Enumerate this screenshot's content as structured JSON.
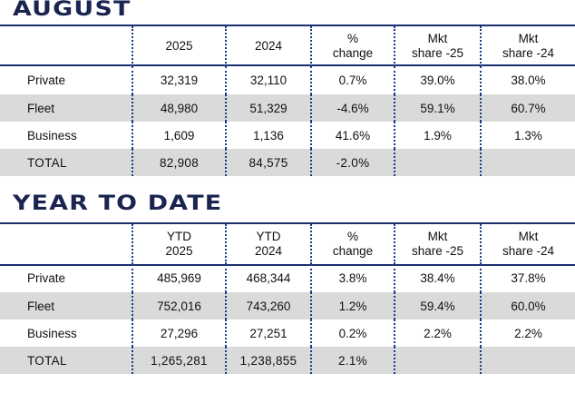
{
  "august": {
    "title": "AUGUST",
    "headers": {
      "col1": "2025",
      "col2": "2024",
      "col3_line1": "%",
      "col3_line2": "change",
      "col4_line1": "Mkt",
      "col4_line2": "share -25",
      "col5_line1": "Mkt",
      "col5_line2": "share -24"
    },
    "rows": [
      {
        "label": "Private",
        "y2025": "32,319",
        "y2024": "32,110",
        "change": "0.7%",
        "share25": "39.0%",
        "share24": "38.0%"
      },
      {
        "label": "Fleet",
        "y2025": "48,980",
        "y2024": "51,329",
        "change": "-4.6%",
        "share25": "59.1%",
        "share24": "60.7%"
      },
      {
        "label": "Business",
        "y2025": "1,609",
        "y2024": "1,136",
        "change": "41.6%",
        "share25": "1.9%",
        "share24": "1.3%"
      },
      {
        "label": "TOTAL",
        "y2025": "82,908",
        "y2024": "84,575",
        "change": "-2.0%",
        "share25": "",
        "share24": ""
      }
    ]
  },
  "ytd": {
    "title": "YEAR TO DATE",
    "headers": {
      "col1_line1": "YTD",
      "col1_line2": "2025",
      "col2_line1": "YTD",
      "col2_line2": "2024",
      "col3_line1": "%",
      "col3_line2": "change",
      "col4_line1": "Mkt",
      "col4_line2": "share -25",
      "col5_line1": "Mkt",
      "col5_line2": "share -24"
    },
    "rows": [
      {
        "label": "Private",
        "y2025": "485,969",
        "y2024": "468,344",
        "change": "3.8%",
        "share25": "38.4%",
        "share24": "37.8%"
      },
      {
        "label": "Fleet",
        "y2025": "752,016",
        "y2024": "743,260",
        "change": "1.2%",
        "share25": "59.4%",
        "share24": "60.0%"
      },
      {
        "label": "Business",
        "y2025": "27,296",
        "y2024": "27,251",
        "change": "0.2%",
        "share25": "2.2%",
        "share24": "2.2%"
      },
      {
        "label": "TOTAL",
        "y2025": "1,265,281",
        "y2024": "1,238,855",
        "change": "2.1%",
        "share25": "",
        "share24": ""
      }
    ]
  },
  "colors": {
    "title": "#1a2450",
    "rule": "#1c2f6e",
    "divider": "#1c3c8c",
    "shade": "#dadada"
  }
}
